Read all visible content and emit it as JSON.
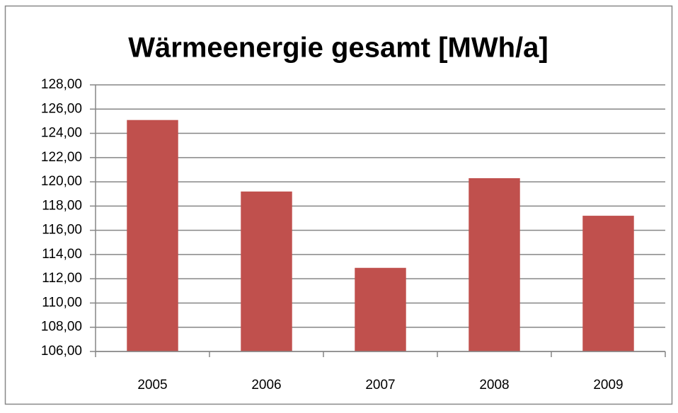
{
  "chart_data": {
    "type": "bar",
    "title": "Wärmeenergie gesamt [MWh/a]",
    "categories": [
      "2005",
      "2006",
      "2007",
      "2008",
      "2009"
    ],
    "values": [
      125.1,
      119.2,
      112.9,
      120.3,
      117.2
    ],
    "color": "#c0504d",
    "ylim": [
      106,
      128
    ],
    "yticks": [
      {
        "value": 106,
        "label": "106,00"
      },
      {
        "value": 108,
        "label": "108,00"
      },
      {
        "value": 110,
        "label": "110,00"
      },
      {
        "value": 112,
        "label": "112,00"
      },
      {
        "value": 114,
        "label": "114,00"
      },
      {
        "value": 116,
        "label": "116,00"
      },
      {
        "value": 118,
        "label": "118,00"
      },
      {
        "value": 120,
        "label": "120,00"
      },
      {
        "value": 122,
        "label": "122,00"
      },
      {
        "value": 124,
        "label": "124,00"
      },
      {
        "value": 126,
        "label": "126,00"
      },
      {
        "value": 128,
        "label": "128,00"
      }
    ],
    "grid": true
  }
}
